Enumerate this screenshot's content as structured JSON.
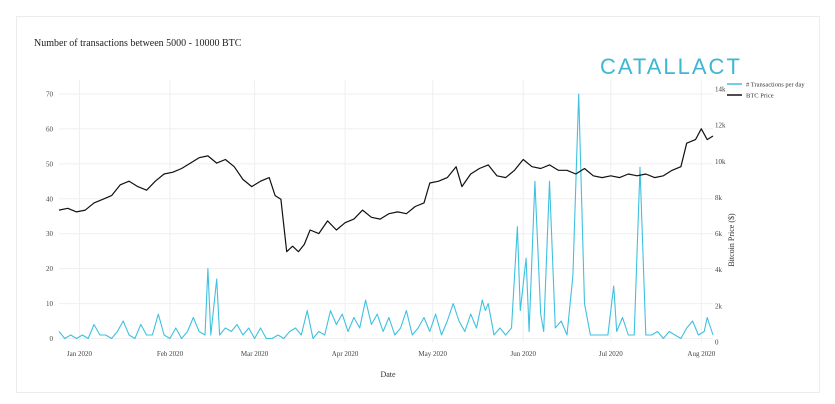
{
  "chart_data": {
    "type": "line",
    "title": "Number of transactions between 5000 - 10000 BTC",
    "xlabel": "Date",
    "ylabel": "",
    "y2label": "Bitcoin Price ($)",
    "logo": "CATALLACT",
    "x_ticks": [
      "Jan 2020",
      "Feb 2020",
      "Mar 2020",
      "Apr 2020",
      "May 2020",
      "Jun 2020",
      "Jul 2020",
      "Aug 2020"
    ],
    "x_range": [
      "2019-12-25",
      "2020-08-05"
    ],
    "y_ticks": [
      "0",
      "10",
      "20",
      "30",
      "40",
      "50",
      "60",
      "70"
    ],
    "ylim": [
      -1,
      74
    ],
    "y2_ticks": [
      "0",
      "2k",
      "4k",
      "6k",
      "8k",
      "10k",
      "12k",
      "14k"
    ],
    "y2lim": [
      0,
      14500
    ],
    "legend_position": "top-right",
    "colors": {
      "transactions": "#3fc1e0",
      "price": "#111111"
    },
    "series": [
      {
        "name": "# Transactions per day",
        "axis": "left",
        "points": [
          [
            "2019-12-25",
            2
          ],
          [
            "2019-12-27",
            0
          ],
          [
            "2019-12-29",
            1
          ],
          [
            "2019-12-31",
            0
          ],
          [
            "2020-01-02",
            1
          ],
          [
            "2020-01-04",
            0
          ],
          [
            "2020-01-06",
            4
          ],
          [
            "2020-01-08",
            1
          ],
          [
            "2020-01-10",
            1
          ],
          [
            "2020-01-12",
            0
          ],
          [
            "2020-01-14",
            2
          ],
          [
            "2020-01-16",
            5
          ],
          [
            "2020-01-18",
            1
          ],
          [
            "2020-01-20",
            0
          ],
          [
            "2020-01-22",
            4
          ],
          [
            "2020-01-24",
            1
          ],
          [
            "2020-01-26",
            1
          ],
          [
            "2020-01-28",
            7
          ],
          [
            "2020-01-30",
            1
          ],
          [
            "2020-02-01",
            0
          ],
          [
            "2020-02-03",
            3
          ],
          [
            "2020-02-05",
            0
          ],
          [
            "2020-02-07",
            2
          ],
          [
            "2020-02-09",
            6
          ],
          [
            "2020-02-11",
            2
          ],
          [
            "2020-02-13",
            1
          ],
          [
            "2020-02-14",
            20
          ],
          [
            "2020-02-15",
            1
          ],
          [
            "2020-02-17",
            17
          ],
          [
            "2020-02-18",
            1
          ],
          [
            "2020-02-20",
            3
          ],
          [
            "2020-02-22",
            2
          ],
          [
            "2020-02-24",
            4
          ],
          [
            "2020-02-26",
            1
          ],
          [
            "2020-02-28",
            3
          ],
          [
            "2020-03-01",
            0
          ],
          [
            "2020-03-03",
            3
          ],
          [
            "2020-03-05",
            0
          ],
          [
            "2020-03-07",
            0
          ],
          [
            "2020-03-09",
            1
          ],
          [
            "2020-03-11",
            0
          ],
          [
            "2020-03-13",
            2
          ],
          [
            "2020-03-15",
            3
          ],
          [
            "2020-03-17",
            1
          ],
          [
            "2020-03-19",
            8
          ],
          [
            "2020-03-21",
            0
          ],
          [
            "2020-03-23",
            2
          ],
          [
            "2020-03-25",
            1
          ],
          [
            "2020-03-27",
            8
          ],
          [
            "2020-03-29",
            4
          ],
          [
            "2020-03-31",
            7
          ],
          [
            "2020-04-02",
            2
          ],
          [
            "2020-04-04",
            6
          ],
          [
            "2020-04-06",
            3
          ],
          [
            "2020-04-08",
            11
          ],
          [
            "2020-04-10",
            4
          ],
          [
            "2020-04-12",
            7
          ],
          [
            "2020-04-14",
            2
          ],
          [
            "2020-04-16",
            6
          ],
          [
            "2020-04-18",
            1
          ],
          [
            "2020-04-20",
            3
          ],
          [
            "2020-04-22",
            8
          ],
          [
            "2020-04-24",
            1
          ],
          [
            "2020-04-26",
            3
          ],
          [
            "2020-04-28",
            6
          ],
          [
            "2020-04-30",
            2
          ],
          [
            "2020-05-02",
            7
          ],
          [
            "2020-05-04",
            1
          ],
          [
            "2020-05-06",
            5
          ],
          [
            "2020-05-08",
            10
          ],
          [
            "2020-05-10",
            5
          ],
          [
            "2020-05-12",
            2
          ],
          [
            "2020-05-14",
            7
          ],
          [
            "2020-05-16",
            3
          ],
          [
            "2020-05-18",
            11
          ],
          [
            "2020-05-19",
            8
          ],
          [
            "2020-05-20",
            10
          ],
          [
            "2020-05-22",
            1
          ],
          [
            "2020-05-24",
            3
          ],
          [
            "2020-05-26",
            1
          ],
          [
            "2020-05-28",
            3
          ],
          [
            "2020-05-30",
            32
          ],
          [
            "2020-05-31",
            8
          ],
          [
            "2020-06-02",
            23
          ],
          [
            "2020-06-03",
            2
          ],
          [
            "2020-06-05",
            45
          ],
          [
            "2020-06-07",
            7
          ],
          [
            "2020-06-08",
            2
          ],
          [
            "2020-06-10",
            45
          ],
          [
            "2020-06-12",
            3
          ],
          [
            "2020-06-14",
            5
          ],
          [
            "2020-06-16",
            1
          ],
          [
            "2020-06-18",
            18
          ],
          [
            "2020-06-20",
            70
          ],
          [
            "2020-06-22",
            10
          ],
          [
            "2020-06-24",
            1
          ],
          [
            "2020-06-26",
            1
          ],
          [
            "2020-06-28",
            1
          ],
          [
            "2020-06-30",
            1
          ],
          [
            "2020-07-02",
            15
          ],
          [
            "2020-07-03",
            2
          ],
          [
            "2020-07-05",
            6
          ],
          [
            "2020-07-07",
            1
          ],
          [
            "2020-07-09",
            1
          ],
          [
            "2020-07-11",
            49
          ],
          [
            "2020-07-13",
            1
          ],
          [
            "2020-07-15",
            1
          ],
          [
            "2020-07-17",
            2
          ],
          [
            "2020-07-19",
            0
          ],
          [
            "2020-07-21",
            2
          ],
          [
            "2020-07-23",
            1
          ],
          [
            "2020-07-25",
            0
          ],
          [
            "2020-07-27",
            3
          ],
          [
            "2020-07-29",
            5
          ],
          [
            "2020-07-31",
            1
          ],
          [
            "2020-08-02",
            2
          ],
          [
            "2020-08-03",
            6
          ],
          [
            "2020-08-05",
            1
          ]
        ]
      },
      {
        "name": "BTC Price",
        "axis": "right",
        "points": [
          [
            "2019-12-25",
            7300
          ],
          [
            "2019-12-28",
            7400
          ],
          [
            "2019-12-31",
            7200
          ],
          [
            "2020-01-03",
            7300
          ],
          [
            "2020-01-06",
            7700
          ],
          [
            "2020-01-09",
            7900
          ],
          [
            "2020-01-12",
            8100
          ],
          [
            "2020-01-15",
            8700
          ],
          [
            "2020-01-18",
            8900
          ],
          [
            "2020-01-21",
            8600
          ],
          [
            "2020-01-24",
            8400
          ],
          [
            "2020-01-27",
            8900
          ],
          [
            "2020-01-30",
            9300
          ],
          [
            "2020-02-02",
            9400
          ],
          [
            "2020-02-05",
            9600
          ],
          [
            "2020-02-08",
            9900
          ],
          [
            "2020-02-11",
            10200
          ],
          [
            "2020-02-14",
            10300
          ],
          [
            "2020-02-17",
            9900
          ],
          [
            "2020-02-20",
            10100
          ],
          [
            "2020-02-23",
            9700
          ],
          [
            "2020-02-26",
            9000
          ],
          [
            "2020-02-29",
            8600
          ],
          [
            "2020-03-03",
            8900
          ],
          [
            "2020-03-06",
            9100
          ],
          [
            "2020-03-08",
            8100
          ],
          [
            "2020-03-10",
            7900
          ],
          [
            "2020-03-12",
            5000
          ],
          [
            "2020-03-14",
            5300
          ],
          [
            "2020-03-16",
            5000
          ],
          [
            "2020-03-18",
            5400
          ],
          [
            "2020-03-20",
            6200
          ],
          [
            "2020-03-23",
            6000
          ],
          [
            "2020-03-26",
            6700
          ],
          [
            "2020-03-29",
            6200
          ],
          [
            "2020-04-01",
            6600
          ],
          [
            "2020-04-04",
            6800
          ],
          [
            "2020-04-07",
            7300
          ],
          [
            "2020-04-10",
            6900
          ],
          [
            "2020-04-13",
            6800
          ],
          [
            "2020-04-16",
            7100
          ],
          [
            "2020-04-19",
            7200
          ],
          [
            "2020-04-22",
            7100
          ],
          [
            "2020-04-25",
            7500
          ],
          [
            "2020-04-28",
            7700
          ],
          [
            "2020-04-30",
            8800
          ],
          [
            "2020-05-03",
            8900
          ],
          [
            "2020-05-06",
            9100
          ],
          [
            "2020-05-09",
            9700
          ],
          [
            "2020-05-11",
            8600
          ],
          [
            "2020-05-14",
            9300
          ],
          [
            "2020-05-17",
            9600
          ],
          [
            "2020-05-20",
            9800
          ],
          [
            "2020-05-23",
            9200
          ],
          [
            "2020-05-26",
            9100
          ],
          [
            "2020-05-29",
            9500
          ],
          [
            "2020-06-01",
            10100
          ],
          [
            "2020-06-04",
            9700
          ],
          [
            "2020-06-07",
            9600
          ],
          [
            "2020-06-10",
            9800
          ],
          [
            "2020-06-13",
            9500
          ],
          [
            "2020-06-16",
            9500
          ],
          [
            "2020-06-19",
            9300
          ],
          [
            "2020-06-22",
            9600
          ],
          [
            "2020-06-25",
            9200
          ],
          [
            "2020-06-28",
            9100
          ],
          [
            "2020-07-01",
            9200
          ],
          [
            "2020-07-04",
            9100
          ],
          [
            "2020-07-07",
            9300
          ],
          [
            "2020-07-10",
            9200
          ],
          [
            "2020-07-13",
            9300
          ],
          [
            "2020-07-16",
            9100
          ],
          [
            "2020-07-19",
            9200
          ],
          [
            "2020-07-22",
            9500
          ],
          [
            "2020-07-25",
            9700
          ],
          [
            "2020-07-27",
            11000
          ],
          [
            "2020-07-30",
            11200
          ],
          [
            "2020-08-01",
            11800
          ],
          [
            "2020-08-03",
            11200
          ],
          [
            "2020-08-05",
            11400
          ]
        ]
      }
    ]
  }
}
